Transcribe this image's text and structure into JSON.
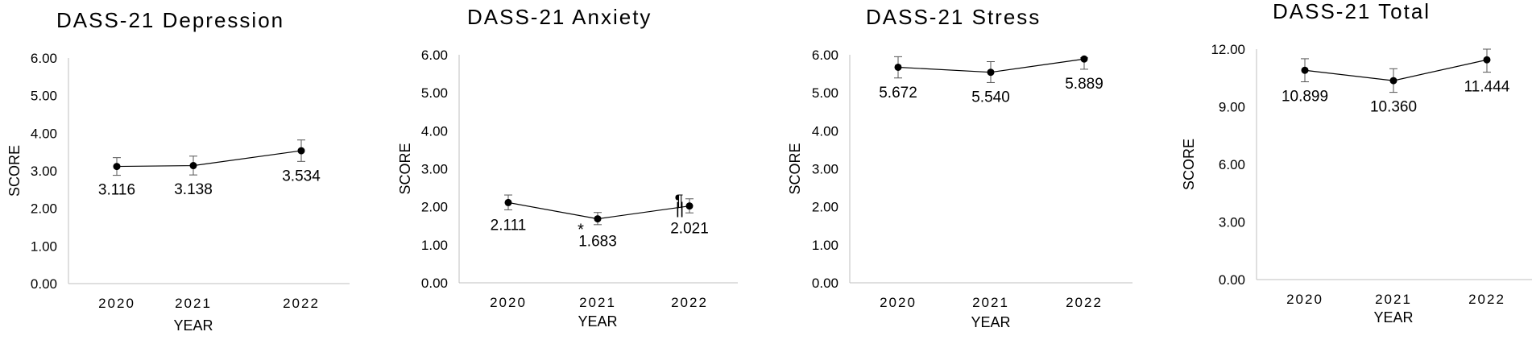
{
  "chart_data": [
    {
      "type": "line",
      "title": "DASS-21 Depression",
      "xlabel": "YEAR",
      "ylabel": "SCORE",
      "categories": [
        "2020",
        "2021",
        "2022"
      ],
      "values": [
        3.116,
        3.138,
        3.534
      ],
      "value_labels": [
        "3.116",
        "3.138",
        "3.534"
      ],
      "error_low": [
        2.88,
        2.89,
        3.25
      ],
      "error_high": [
        3.35,
        3.39,
        3.82
      ],
      "ylim": [
        0,
        6
      ],
      "yticks": [
        "0.00",
        "1.00",
        "2.00",
        "3.00",
        "4.00",
        "5.00",
        "6.00"
      ],
      "grid": false,
      "annotations": []
    },
    {
      "type": "line",
      "title": "DASS-21 Anxiety",
      "xlabel": "YEAR",
      "ylabel": "SCORE",
      "categories": [
        "2020",
        "2021",
        "2022"
      ],
      "values": [
        2.111,
        1.683,
        2.021
      ],
      "value_labels": [
        "2.111",
        "1.683",
        "2.021"
      ],
      "error_low": [
        1.92,
        1.53,
        1.84
      ],
      "error_high": [
        2.31,
        1.85,
        2.21
      ],
      "ylim": [
        0,
        6
      ],
      "yticks": [
        "0.00",
        "1.00",
        "2.00",
        "3.00",
        "4.00",
        "5.00",
        "6.00"
      ],
      "grid": false,
      "annotations": [
        {
          "text": "*",
          "index": 1
        },
        {
          "text": "¶",
          "index": 2
        },
        {
          "text": "||",
          "index": 2
        }
      ]
    },
    {
      "type": "line",
      "title": "DASS-21 Stress",
      "xlabel": "YEAR",
      "ylabel": "SCORE",
      "categories": [
        "2020",
        "2021",
        "2022"
      ],
      "values": [
        5.672,
        5.54,
        5.889
      ],
      "value_labels": [
        "5.672",
        "5.540",
        "5.889"
      ],
      "error_low": [
        5.39,
        5.27,
        5.62
      ],
      "error_high": [
        5.95,
        5.82,
        5.92
      ],
      "ylim": [
        0,
        6
      ],
      "yticks": [
        "0.00",
        "1.00",
        "2.00",
        "3.00",
        "4.00",
        "5.00",
        "6.00"
      ],
      "grid": false,
      "annotations": []
    },
    {
      "type": "line",
      "title": "DASS-21 Total",
      "xlabel": "YEAR",
      "ylabel": "SCORE",
      "categories": [
        "2020",
        "2021",
        "2022"
      ],
      "values": [
        10.899,
        10.36,
        11.444
      ],
      "value_labels": [
        "10.899",
        "10.360",
        "11.444"
      ],
      "error_low": [
        10.3,
        9.75,
        10.8
      ],
      "error_high": [
        11.5,
        10.98,
        12.0
      ],
      "ylim": [
        0,
        12
      ],
      "yticks": [
        "0.00",
        "3.00",
        "6.00",
        "9.00",
        "12.00"
      ],
      "grid": false,
      "annotations": []
    }
  ]
}
